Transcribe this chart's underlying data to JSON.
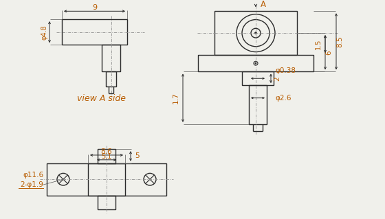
{
  "bg_color": "#f0f0eb",
  "line_color": "#2a2a2a",
  "orange_color": "#b85c00",
  "view_label": "view A side",
  "dims": {
    "top_width": "9",
    "top_dia": "φ4.8",
    "side_85": "8.5",
    "side_6": "6",
    "side_15": "1.5",
    "side_17": "1.7",
    "side_2": "2",
    "phi038": "φ0.38",
    "phi26": "φ2.6",
    "bot_86": "8.6",
    "bot_51": "5.1",
    "bot_phi116": "φ11.6",
    "bot_2phi19": "2-φ1.9",
    "bot_5": "5",
    "arrow_A": "A"
  }
}
